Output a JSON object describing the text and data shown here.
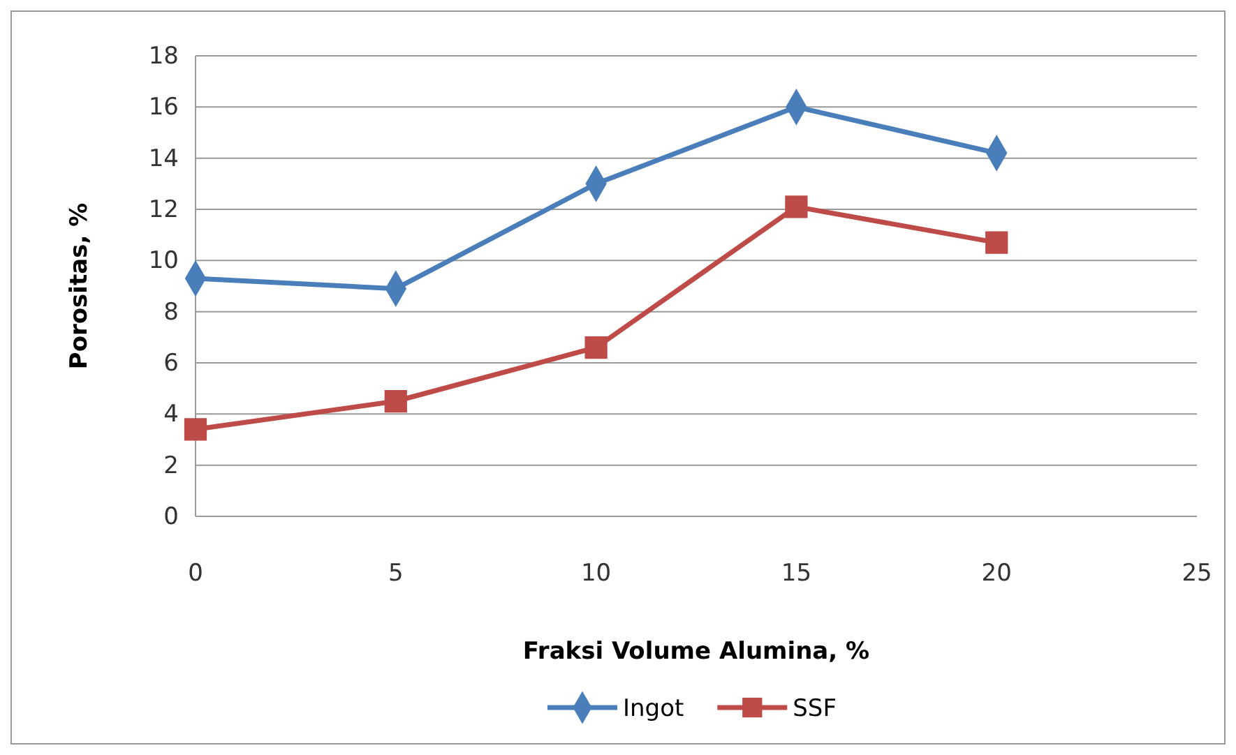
{
  "chart_data": {
    "type": "line",
    "xlabel": "Fraksi Volume Alumina, %",
    "ylabel": "Porositas, %",
    "x": [
      0,
      5,
      10,
      15,
      20
    ],
    "series": [
      {
        "name": "Ingot",
        "color": "#4a7ebb",
        "marker": "diamond",
        "values": [
          9.3,
          8.9,
          13,
          16,
          14.2
        ]
      },
      {
        "name": "SSF",
        "color": "#be4b48",
        "marker": "square",
        "values": [
          3.4,
          4.5,
          6.6,
          12.1,
          10.7
        ]
      }
    ],
    "xlim": [
      0,
      25
    ],
    "xticks": [
      0,
      5,
      10,
      15,
      20,
      25
    ],
    "ylim": [
      0,
      18
    ],
    "yticks": [
      0,
      2,
      4,
      6,
      8,
      10,
      12,
      14,
      16,
      18
    ],
    "grid": "y",
    "legend": "bottom"
  }
}
